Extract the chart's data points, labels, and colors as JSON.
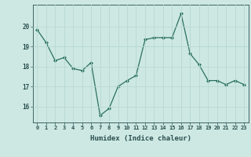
{
  "x": [
    0,
    1,
    2,
    3,
    4,
    5,
    6,
    7,
    8,
    9,
    10,
    11,
    12,
    13,
    14,
    15,
    16,
    17,
    18,
    19,
    20,
    21,
    22,
    23
  ],
  "y": [
    19.85,
    19.2,
    18.3,
    18.45,
    17.9,
    17.8,
    18.2,
    15.55,
    15.9,
    17.0,
    17.3,
    17.55,
    19.35,
    19.45,
    19.45,
    19.45,
    20.65,
    18.65,
    18.1,
    17.3,
    17.3,
    17.1,
    17.3,
    17.1
  ],
  "xlabel": "Humidex (Indice chaleur)",
  "ylabel": "",
  "ylim": [
    15.2,
    21.1
  ],
  "xlim": [
    -0.5,
    23.5
  ],
  "yticks": [
    16,
    17,
    18,
    19,
    20
  ],
  "xtick_labels": [
    "0",
    "1",
    "2",
    "3",
    "4",
    "5",
    "6",
    "7",
    "8",
    "9",
    "10",
    "11",
    "12",
    "13",
    "14",
    "15",
    "16",
    "17",
    "18",
    "19",
    "20",
    "21",
    "22",
    "23"
  ],
  "bg_color": "#cde8e3",
  "grid_color": "#b8d8d0",
  "line_color": "#2a7060",
  "marker_color": "#2a7060",
  "font_color": "#2a5050",
  "xlabel_color": "#2a5050"
}
